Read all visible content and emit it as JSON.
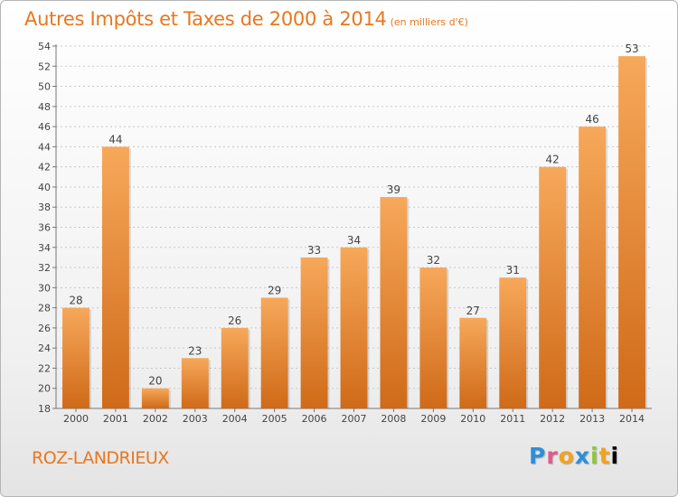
{
  "header": {
    "title": "Autres Impôts et Taxes de 2000 à 2014",
    "subtitle": "(en milliers d'€)"
  },
  "footer": {
    "commune": "ROZ-LANDRIEUX",
    "logo": "Proxiti"
  },
  "colors": {
    "accent": "#e8771f",
    "bar_top": "#f7a85a",
    "bar_bottom": "#cf6a18"
  },
  "chart_data": {
    "type": "bar",
    "categories": [
      "2000",
      "2001",
      "2002",
      "2003",
      "2004",
      "2005",
      "2006",
      "2007",
      "2008",
      "2009",
      "2010",
      "2011",
      "2012",
      "2013",
      "2014"
    ],
    "values": [
      28,
      44,
      20,
      23,
      26,
      29,
      33,
      34,
      39,
      32,
      27,
      31,
      42,
      46,
      53
    ],
    "title": "Autres Impôts et Taxes de 2000 à 2014",
    "subtitle": "(en milliers d'€)",
    "ylim": [
      18,
      54
    ],
    "ytick_step": 2,
    "grid": true,
    "data_labels": true,
    "legend": "none"
  }
}
